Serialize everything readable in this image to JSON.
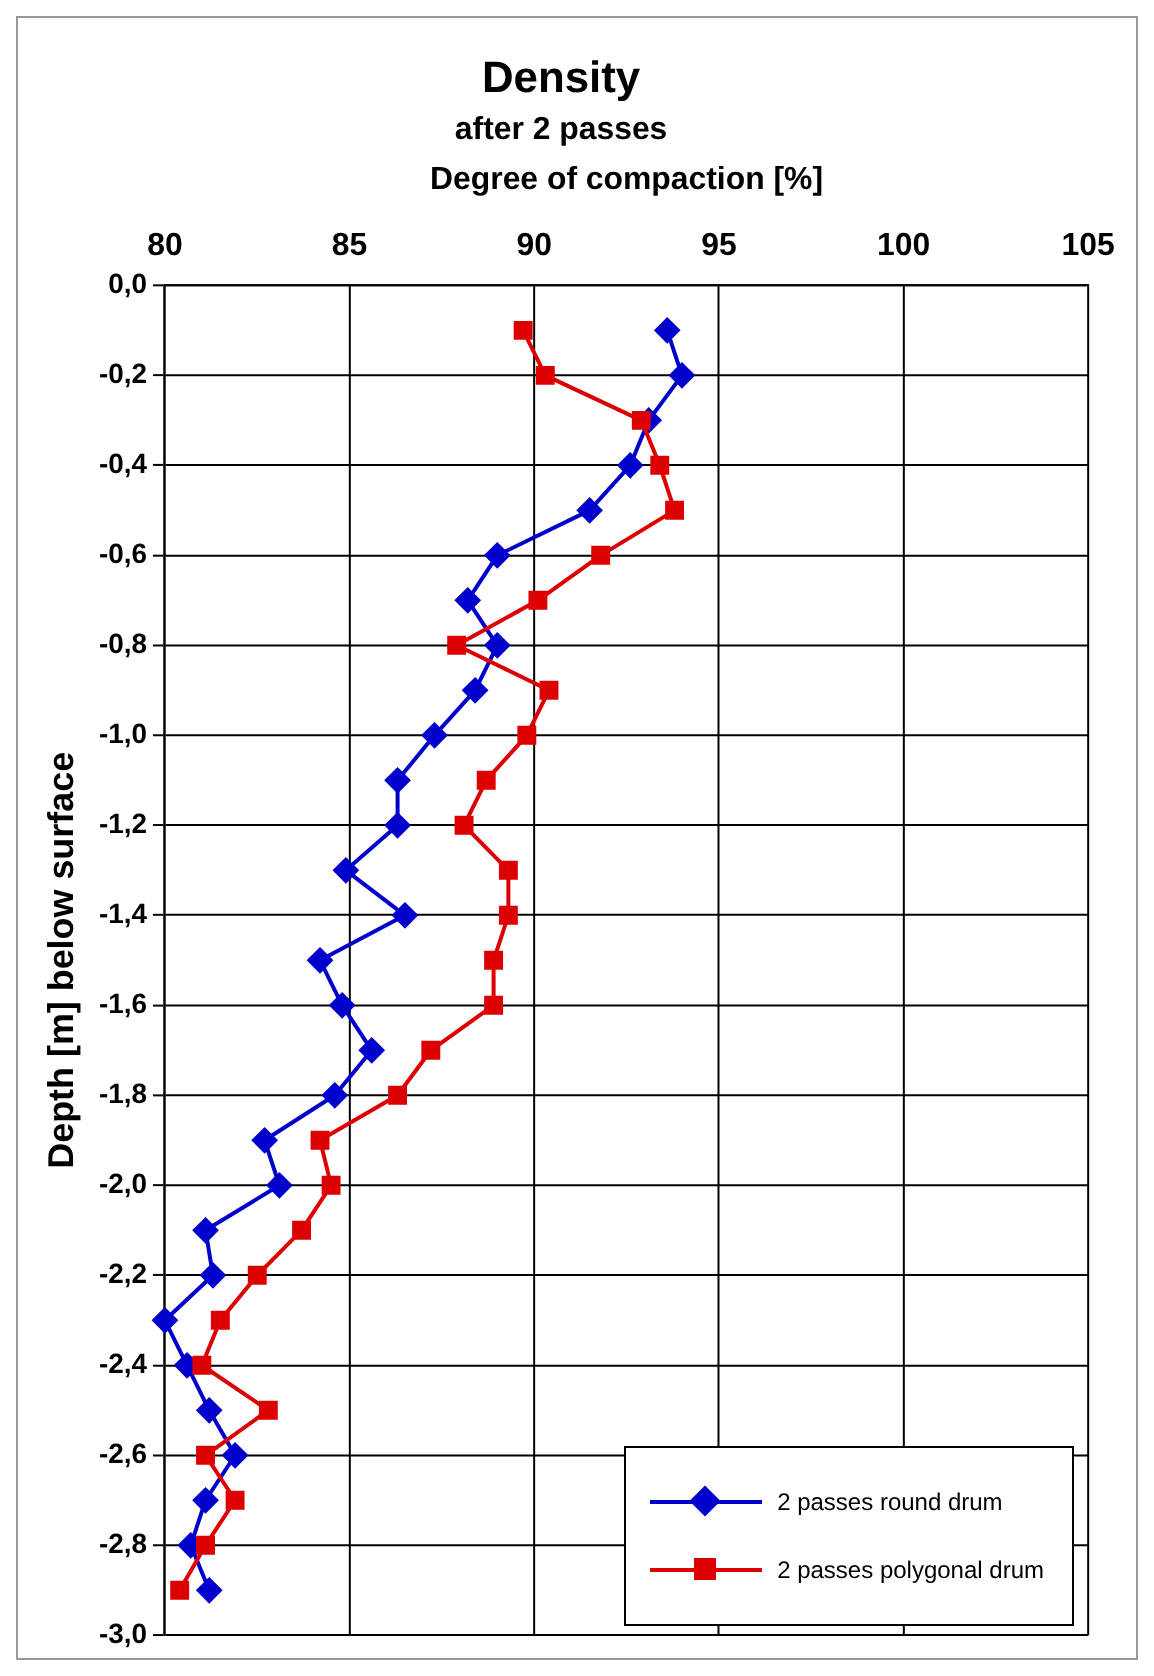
{
  "chart_data": {
    "type": "line",
    "title": "Density",
    "subtitle": "after 2 passes",
    "xlabel": "Degree of compaction [%]",
    "ylabel": "Depth [m] below surface",
    "xlim": [
      80,
      105
    ],
    "xticks": [
      80,
      85,
      90,
      95,
      100,
      105
    ],
    "ylim": [
      -3,
      0
    ],
    "yticks": [
      {
        "value": 0,
        "label": "0,0"
      },
      {
        "value": -0.2,
        "label": "-0,2"
      },
      {
        "value": -0.4,
        "label": "-0,4"
      },
      {
        "value": -0.6,
        "label": "-0,6"
      },
      {
        "value": -0.8,
        "label": "-0,8"
      },
      {
        "value": -1.0,
        "label": "-1,0"
      },
      {
        "value": -1.2,
        "label": "-1,2"
      },
      {
        "value": -1.4,
        "label": "-1,4"
      },
      {
        "value": -1.6,
        "label": "-1,6"
      },
      {
        "value": -1.8,
        "label": "-1,8"
      },
      {
        "value": -2.0,
        "label": "-2,0"
      },
      {
        "value": -2.2,
        "label": "-2,2"
      },
      {
        "value": -2.4,
        "label": "-2,4"
      },
      {
        "value": -2.6,
        "label": "-2,6"
      },
      {
        "value": -2.8,
        "label": "-2,8"
      },
      {
        "value": -3.0,
        "label": "-3,0"
      }
    ],
    "grid": true,
    "legend": "bottom right",
    "line_style": "solid",
    "series": [
      {
        "name": "2 passes round drum",
        "color": "#0000cc",
        "marker": "diamond",
        "x": [
          93.6,
          94.0,
          93.1,
          92.6,
          91.5,
          89.0,
          88.2,
          89.0,
          88.4,
          87.3,
          86.3,
          86.3,
          84.9,
          86.5,
          84.2,
          84.8,
          85.6,
          84.6,
          82.7,
          83.1,
          81.1,
          81.3,
          80.0,
          80.6,
          81.2,
          81.9,
          81.1,
          80.7,
          81.2
        ],
        "values": [
          -0.1,
          -0.2,
          -0.3,
          -0.4,
          -0.5,
          -0.6,
          -0.7,
          -0.8,
          -0.9,
          -1.0,
          -1.1,
          -1.2,
          -1.3,
          -1.4,
          -1.5,
          -1.6,
          -1.7,
          -1.8,
          -1.9,
          -2.0,
          -2.1,
          -2.2,
          -2.3,
          -2.4,
          -2.5,
          -2.6,
          -2.7,
          -2.8,
          -2.9
        ]
      },
      {
        "name": "2 passes polygonal drum",
        "color": "#dd0000",
        "marker": "square",
        "x": [
          89.7,
          90.3,
          92.9,
          93.4,
          93.8,
          91.8,
          90.1,
          87.9,
          90.4,
          89.8,
          88.7,
          88.1,
          89.3,
          89.3,
          88.9,
          88.9,
          87.2,
          86.3,
          84.2,
          84.5,
          83.7,
          82.5,
          81.5,
          81.0,
          82.8,
          81.1,
          81.9,
          81.1,
          80.4
        ],
        "values": [
          -0.1,
          -0.2,
          -0.3,
          -0.4,
          -0.5,
          -0.6,
          -0.7,
          -0.8,
          -0.9,
          -1.0,
          -1.1,
          -1.2,
          -1.3,
          -1.4,
          -1.5,
          -1.6,
          -1.7,
          -1.8,
          -1.9,
          -2.0,
          -2.1,
          -2.2,
          -2.3,
          -2.4,
          -2.5,
          -2.6,
          -2.7,
          -2.8,
          -2.9
        ]
      }
    ]
  }
}
